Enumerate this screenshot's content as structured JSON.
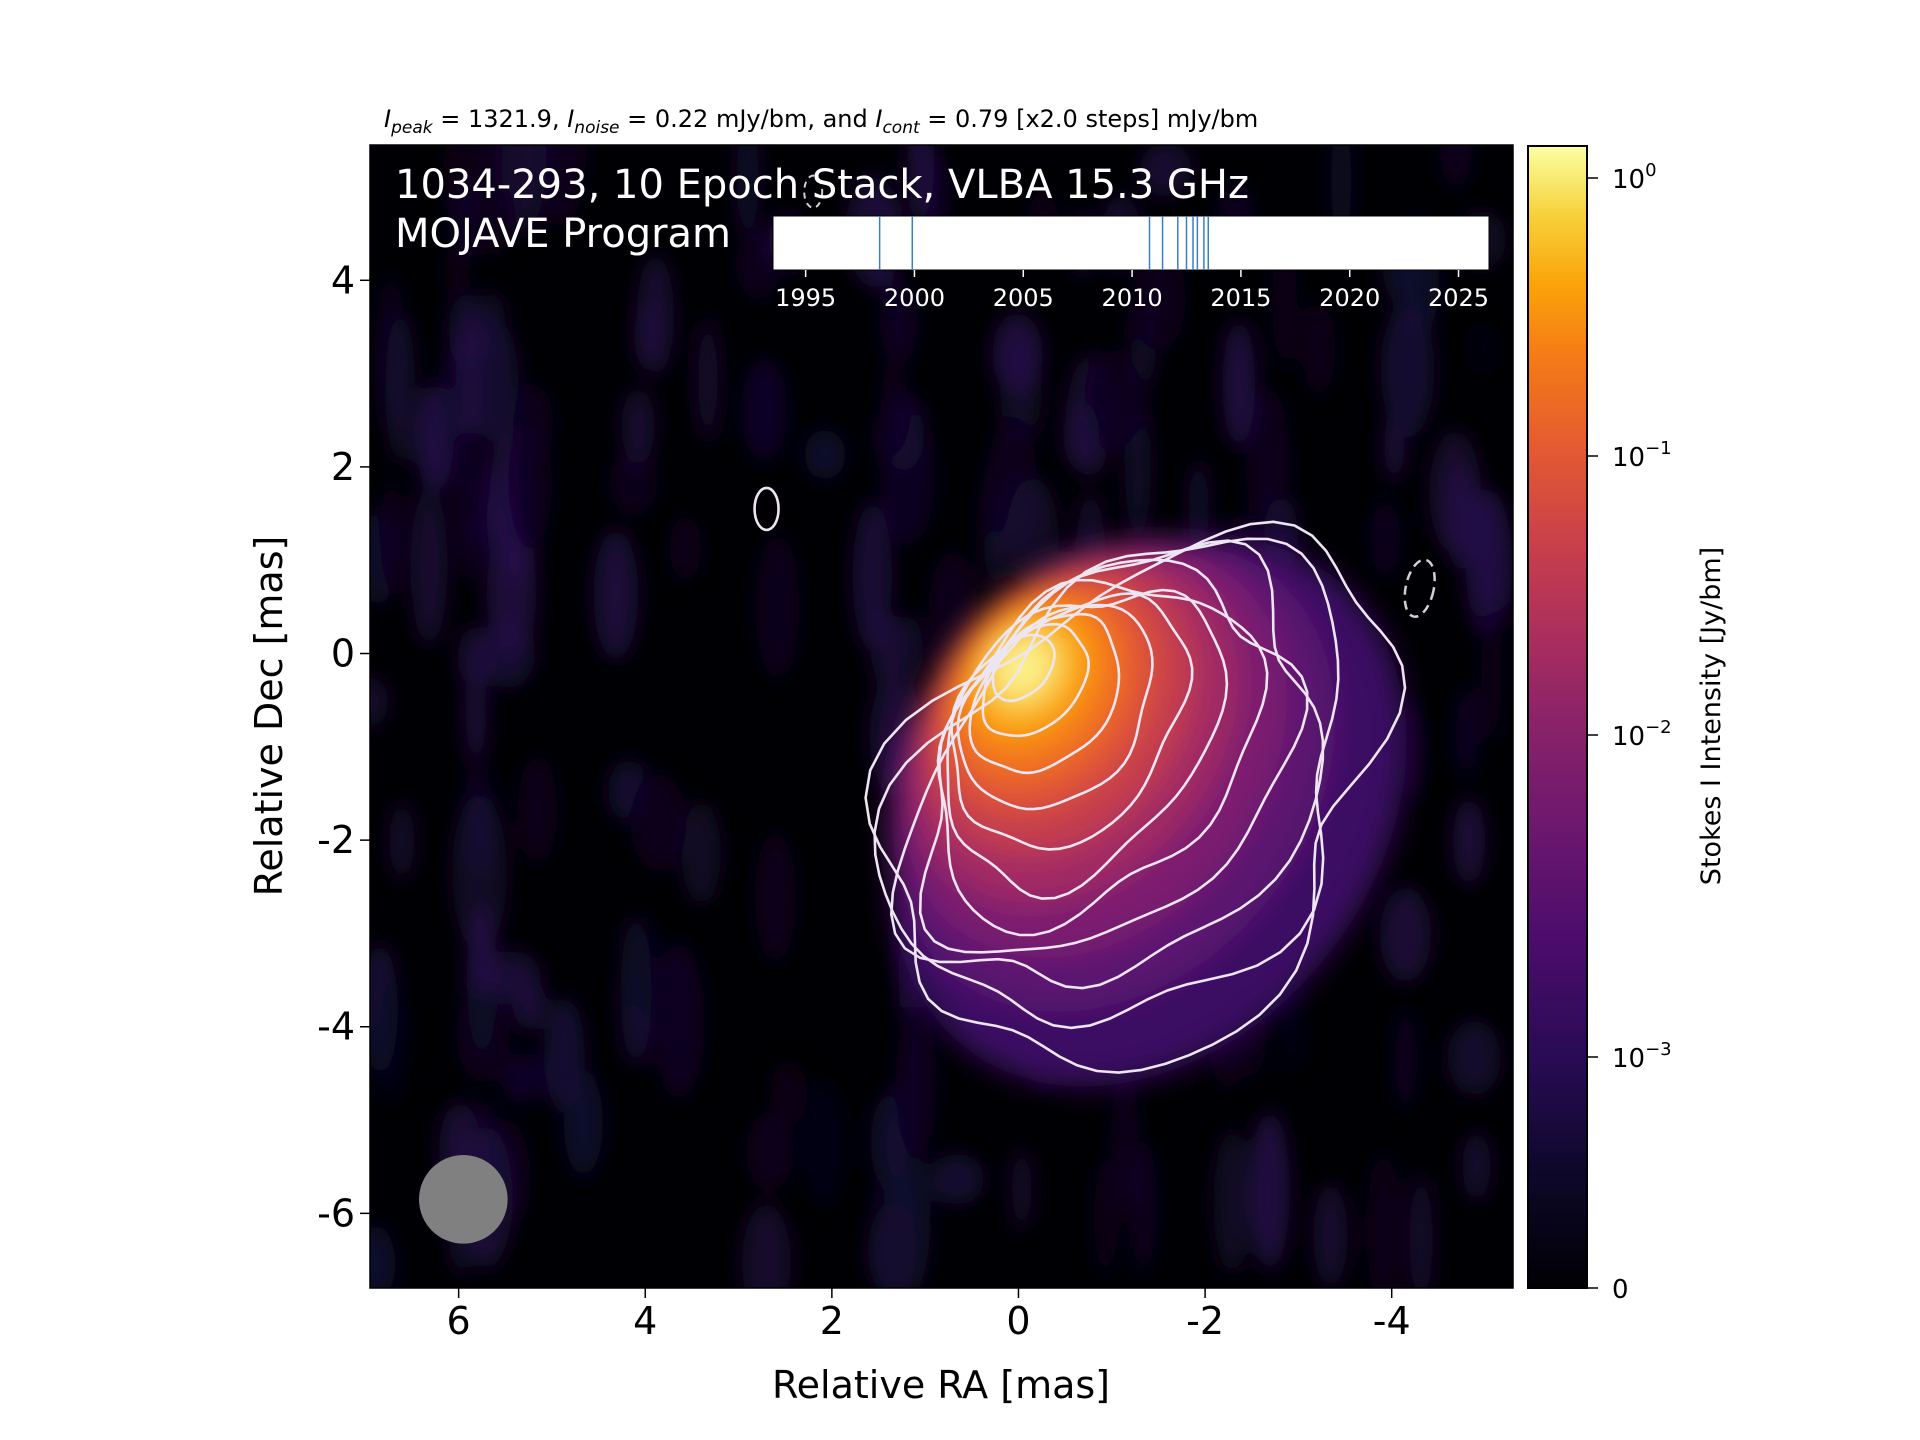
{
  "chart_data": {
    "type": "heatmap",
    "header": {
      "peak_value": "1321.9",
      "noise_value": "0.22 mJy/bm",
      "cont_value": "0.79 [x2.0 steps] mJy/bm",
      "sep_and": ", and ",
      "label_I": "I",
      "sub_peak": "peak",
      "sub_noise": "noise",
      "sub_cont": "cont"
    },
    "title_line1": "1034-293, 10 Epoch Stack, VLBA 15.3 GHz",
    "title_line2": "MOJAVE Program",
    "xlabel": "Relative RA [mas]",
    "ylabel": "Relative Dec [mas]",
    "xlim": [
      6.95,
      -5.3
    ],
    "ylim": [
      -6.8,
      5.45
    ],
    "xticks": [
      6,
      4,
      2,
      0,
      -2,
      -4
    ],
    "yticks": [
      4,
      2,
      0,
      -2,
      -4,
      -6
    ],
    "colorbar": {
      "label": "Stokes I Intensity [Jy/bm]",
      "scale": "log",
      "colormap": "inferno",
      "ticks": [
        {
          "value": 1,
          "mantissa": "10",
          "exponent": "0"
        },
        {
          "value": 0.1,
          "mantissa": "10",
          "exponent": "−1"
        },
        {
          "value": 0.01,
          "mantissa": "10",
          "exponent": "−2"
        },
        {
          "value": 0.001,
          "mantissa": "10",
          "exponent": "−3"
        },
        {
          "value": 0,
          "mantissa": "0",
          "exponent": ""
        }
      ]
    },
    "source": {
      "peak_x": -0.05,
      "peak_y": -0.15,
      "peak_jy": 1.3219,
      "noise_jy": 0.00022,
      "contour_base_jy": 0.00079,
      "contour_step": 2.0
    },
    "beam": {
      "x": 5.95,
      "y": -5.85,
      "diameter_mas": 0.95,
      "color": "#808080"
    },
    "negative_contour": {
      "x": -4.3,
      "y": 0.7
    },
    "epoch_timeline": {
      "xlim": [
        1993.5,
        2026.4
      ],
      "ticks": [
        1995,
        2000,
        2005,
        2010,
        2015,
        2020,
        2025
      ],
      "epochs": [
        1998.4,
        1999.9,
        2010.8,
        2011.4,
        2012.1,
        2012.5,
        2012.8,
        2013.0,
        2013.3,
        2013.5
      ],
      "line_color": "#3a7fbf"
    }
  }
}
